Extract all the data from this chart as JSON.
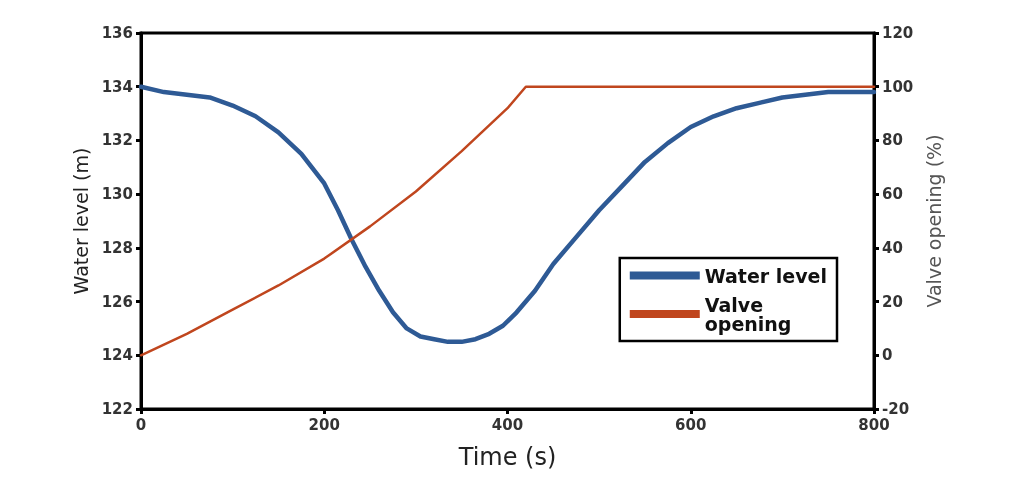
{
  "chart_data": {
    "type": "line",
    "xlabel": "Time (s)",
    "ylabel": "Water level (m)",
    "y2label": "Valve opening (%)",
    "xlim": [
      0,
      800
    ],
    "xticks": [
      0,
      200,
      400,
      600,
      800
    ],
    "ylim": [
      122,
      136
    ],
    "yticks": [
      122,
      124,
      126,
      128,
      130,
      132,
      134,
      136
    ],
    "y2lim": [
      -20,
      120
    ],
    "y2ticks": [
      -20,
      0,
      20,
      40,
      60,
      80,
      100,
      120
    ],
    "grid": false,
    "legend": "right",
    "line_style": "solid",
    "marker": "none",
    "series": [
      {
        "name": "Water level",
        "color": "#2e5a95",
        "x": [
          0,
          25,
          50,
          75,
          100,
          125,
          150,
          175,
          200,
          215,
          230,
          245,
          260,
          275,
          290,
          305,
          320,
          335,
          350,
          365,
          380,
          395,
          410,
          430,
          450,
          475,
          500,
          525,
          550,
          575,
          600,
          625,
          650,
          675,
          700,
          725,
          750,
          775,
          800
        ],
        "values": [
          134.0,
          133.8,
          133.7,
          133.6,
          133.3,
          132.9,
          132.3,
          131.5,
          130.4,
          129.4,
          128.3,
          127.3,
          126.4,
          125.6,
          125.0,
          124.7,
          124.6,
          124.5,
          124.5,
          124.6,
          124.8,
          125.1,
          125.6,
          126.4,
          127.4,
          128.4,
          129.4,
          130.3,
          131.2,
          131.9,
          132.5,
          132.9,
          133.2,
          133.4,
          133.6,
          133.7,
          133.8,
          133.8,
          133.8
        ]
      },
      {
        "name": "Valve opening",
        "color": "#c0461e",
        "axis": "y2",
        "x": [
          0,
          50,
          100,
          150,
          200,
          250,
          300,
          350,
          400,
          420,
          800
        ],
        "values": [
          0,
          8,
          17,
          26,
          36,
          48,
          61,
          76,
          92,
          100,
          100
        ]
      }
    ]
  }
}
